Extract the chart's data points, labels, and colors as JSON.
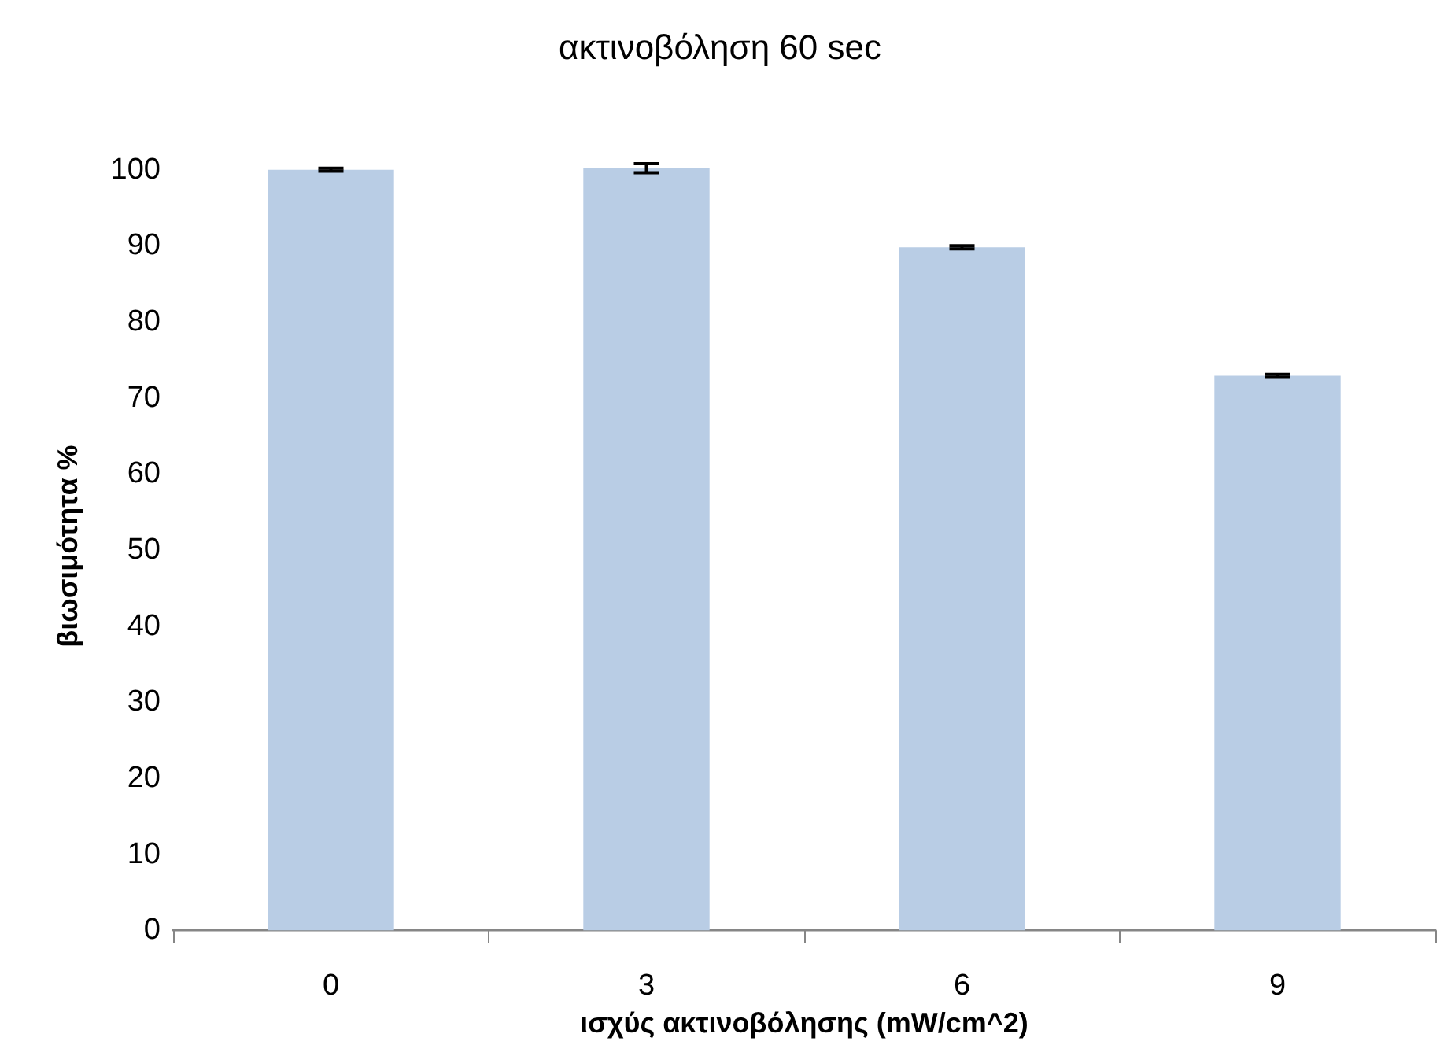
{
  "chart_data": {
    "type": "bar",
    "title": "ακτινοβόληση 60 sec",
    "xlabel": "ισχύς ακτινοβόλησης (mW/cm^2)",
    "ylabel": "βιωσιμότητα %",
    "categories": [
      "0",
      "3",
      "6",
      "9"
    ],
    "values": [
      100,
      100.2,
      89.8,
      72.9
    ],
    "errors": [
      0.2,
      0.6,
      0.2,
      0.2
    ],
    "color": "#b9cde5",
    "ylim": [
      0,
      101
    ],
    "yticks": [
      0,
      10,
      20,
      30,
      40,
      50,
      60,
      70,
      80,
      90,
      100
    ],
    "grid": false
  }
}
